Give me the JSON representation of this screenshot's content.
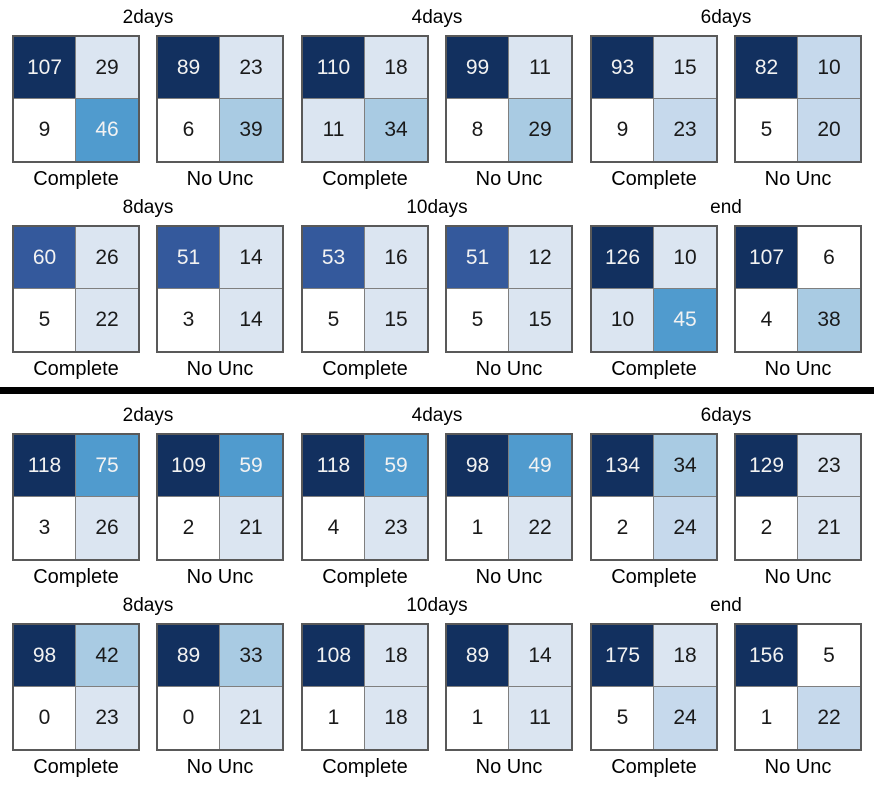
{
  "figure_title": "",
  "palette": {
    "navy": "#12305f",
    "royal": "#34599c",
    "mid": "#509bce",
    "midlight": "#a9cbe3",
    "lightmid": "#c6d9ec",
    "light": "#dbe5f1",
    "white": "#ffffff",
    "text_dark": "#1a1a1a",
    "text_light": "#f2f2f2",
    "divider": "#000000"
  },
  "chart_data": {
    "type": "heatmap",
    "description": "Grid of 2x2 confusion matrices. Two sections separated by a thick black line; each section has rows of time-point groups (2days..end), each group holding a 'Complete' and a 'No Unc' confusion matrix. Cell order: [top-left, top-right, bottom-left, bottom-right].",
    "matrix_label_complete": "Complete",
    "matrix_label_nounc": "No Unc",
    "sections": [
      {
        "rows": [
          {
            "groups": [
              {
                "title": "2days",
                "matrices": [
                  {
                    "label": "Complete",
                    "cells": [
                      {
                        "value": "107",
                        "shade": "navy"
                      },
                      {
                        "value": "29",
                        "shade": "light"
                      },
                      {
                        "value": "9",
                        "shade": "white"
                      },
                      {
                        "value": "46",
                        "shade": "mid"
                      }
                    ]
                  },
                  {
                    "label": "No Unc",
                    "cells": [
                      {
                        "value": "89",
                        "shade": "navy"
                      },
                      {
                        "value": "23",
                        "shade": "light"
                      },
                      {
                        "value": "6",
                        "shade": "white"
                      },
                      {
                        "value": "39",
                        "shade": "midlight"
                      }
                    ]
                  }
                ]
              },
              {
                "title": "4days",
                "matrices": [
                  {
                    "label": "Complete",
                    "cells": [
                      {
                        "value": "110",
                        "shade": "navy"
                      },
                      {
                        "value": "18",
                        "shade": "light"
                      },
                      {
                        "value": "11",
                        "shade": "light"
                      },
                      {
                        "value": "34",
                        "shade": "midlight"
                      }
                    ]
                  },
                  {
                    "label": "No Unc",
                    "cells": [
                      {
                        "value": "99",
                        "shade": "navy"
                      },
                      {
                        "value": "11",
                        "shade": "light"
                      },
                      {
                        "value": "8",
                        "shade": "white"
                      },
                      {
                        "value": "29",
                        "shade": "midlight"
                      }
                    ]
                  }
                ]
              },
              {
                "title": "6days",
                "matrices": [
                  {
                    "label": "Complete",
                    "cells": [
                      {
                        "value": "93",
                        "shade": "navy"
                      },
                      {
                        "value": "15",
                        "shade": "light"
                      },
                      {
                        "value": "9",
                        "shade": "white"
                      },
                      {
                        "value": "23",
                        "shade": "lightmid"
                      }
                    ]
                  },
                  {
                    "label": "No Unc",
                    "cells": [
                      {
                        "value": "82",
                        "shade": "navy"
                      },
                      {
                        "value": "10",
                        "shade": "lightmid"
                      },
                      {
                        "value": "5",
                        "shade": "white"
                      },
                      {
                        "value": "20",
                        "shade": "lightmid"
                      }
                    ]
                  }
                ]
              }
            ]
          },
          {
            "groups": [
              {
                "title": "8days",
                "matrices": [
                  {
                    "label": "Complete",
                    "cells": [
                      {
                        "value": "60",
                        "shade": "royal"
                      },
                      {
                        "value": "26",
                        "shade": "light"
                      },
                      {
                        "value": "5",
                        "shade": "white"
                      },
                      {
                        "value": "22",
                        "shade": "light"
                      }
                    ]
                  },
                  {
                    "label": "No Unc",
                    "cells": [
                      {
                        "value": "51",
                        "shade": "royal"
                      },
                      {
                        "value": "14",
                        "shade": "light"
                      },
                      {
                        "value": "3",
                        "shade": "white"
                      },
                      {
                        "value": "14",
                        "shade": "light"
                      }
                    ]
                  }
                ]
              },
              {
                "title": "10days",
                "matrices": [
                  {
                    "label": "Complete",
                    "cells": [
                      {
                        "value": "53",
                        "shade": "royal"
                      },
                      {
                        "value": "16",
                        "shade": "light"
                      },
                      {
                        "value": "5",
                        "shade": "white"
                      },
                      {
                        "value": "15",
                        "shade": "light"
                      }
                    ]
                  },
                  {
                    "label": "No Unc",
                    "cells": [
                      {
                        "value": "51",
                        "shade": "royal"
                      },
                      {
                        "value": "12",
                        "shade": "light"
                      },
                      {
                        "value": "5",
                        "shade": "white"
                      },
                      {
                        "value": "15",
                        "shade": "light"
                      }
                    ]
                  }
                ]
              },
              {
                "title": "end",
                "matrices": [
                  {
                    "label": "Complete",
                    "cells": [
                      {
                        "value": "126",
                        "shade": "navy"
                      },
                      {
                        "value": "10",
                        "shade": "light"
                      },
                      {
                        "value": "10",
                        "shade": "light"
                      },
                      {
                        "value": "45",
                        "shade": "mid"
                      }
                    ]
                  },
                  {
                    "label": "No Unc",
                    "cells": [
                      {
                        "value": "107",
                        "shade": "navy"
                      },
                      {
                        "value": "6",
                        "shade": "white"
                      },
                      {
                        "value": "4",
                        "shade": "white"
                      },
                      {
                        "value": "38",
                        "shade": "midlight"
                      }
                    ]
                  }
                ]
              }
            ]
          }
        ]
      },
      {
        "rows": [
          {
            "groups": [
              {
                "title": "2days",
                "matrices": [
                  {
                    "label": "Complete",
                    "cells": [
                      {
                        "value": "118",
                        "shade": "navy"
                      },
                      {
                        "value": "75",
                        "shade": "mid"
                      },
                      {
                        "value": "3",
                        "shade": "white"
                      },
                      {
                        "value": "26",
                        "shade": "light"
                      }
                    ]
                  },
                  {
                    "label": "No Unc",
                    "cells": [
                      {
                        "value": "109",
                        "shade": "navy"
                      },
                      {
                        "value": "59",
                        "shade": "mid"
                      },
                      {
                        "value": "2",
                        "shade": "white"
                      },
                      {
                        "value": "21",
                        "shade": "light"
                      }
                    ]
                  }
                ]
              },
              {
                "title": "4days",
                "matrices": [
                  {
                    "label": "Complete",
                    "cells": [
                      {
                        "value": "118",
                        "shade": "navy"
                      },
                      {
                        "value": "59",
                        "shade": "mid"
                      },
                      {
                        "value": "4",
                        "shade": "white"
                      },
                      {
                        "value": "23",
                        "shade": "light"
                      }
                    ]
                  },
                  {
                    "label": "No Unc",
                    "cells": [
                      {
                        "value": "98",
                        "shade": "navy"
                      },
                      {
                        "value": "49",
                        "shade": "mid"
                      },
                      {
                        "value": "1",
                        "shade": "white"
                      },
                      {
                        "value": "22",
                        "shade": "light"
                      }
                    ]
                  }
                ]
              },
              {
                "title": "6days",
                "matrices": [
                  {
                    "label": "Complete",
                    "cells": [
                      {
                        "value": "134",
                        "shade": "navy"
                      },
                      {
                        "value": "34",
                        "shade": "midlight"
                      },
                      {
                        "value": "2",
                        "shade": "white"
                      },
                      {
                        "value": "24",
                        "shade": "lightmid"
                      }
                    ]
                  },
                  {
                    "label": "No Unc",
                    "cells": [
                      {
                        "value": "129",
                        "shade": "navy"
                      },
                      {
                        "value": "23",
                        "shade": "light"
                      },
                      {
                        "value": "2",
                        "shade": "white"
                      },
                      {
                        "value": "21",
                        "shade": "light"
                      }
                    ]
                  }
                ]
              }
            ]
          },
          {
            "groups": [
              {
                "title": "8days",
                "matrices": [
                  {
                    "label": "Complete",
                    "cells": [
                      {
                        "value": "98",
                        "shade": "navy"
                      },
                      {
                        "value": "42",
                        "shade": "midlight"
                      },
                      {
                        "value": "0",
                        "shade": "white"
                      },
                      {
                        "value": "23",
                        "shade": "light"
                      }
                    ]
                  },
                  {
                    "label": "No Unc",
                    "cells": [
                      {
                        "value": "89",
                        "shade": "navy"
                      },
                      {
                        "value": "33",
                        "shade": "midlight"
                      },
                      {
                        "value": "0",
                        "shade": "white"
                      },
                      {
                        "value": "21",
                        "shade": "light"
                      }
                    ]
                  }
                ]
              },
              {
                "title": "10days",
                "matrices": [
                  {
                    "label": "Complete",
                    "cells": [
                      {
                        "value": "108",
                        "shade": "navy"
                      },
                      {
                        "value": "18",
                        "shade": "light"
                      },
                      {
                        "value": "1",
                        "shade": "white"
                      },
                      {
                        "value": "18",
                        "shade": "light"
                      }
                    ]
                  },
                  {
                    "label": "No Unc",
                    "cells": [
                      {
                        "value": "89",
                        "shade": "navy"
                      },
                      {
                        "value": "14",
                        "shade": "light"
                      },
                      {
                        "value": "1",
                        "shade": "white"
                      },
                      {
                        "value": "11",
                        "shade": "light"
                      }
                    ]
                  }
                ]
              },
              {
                "title": "end",
                "matrices": [
                  {
                    "label": "Complete",
                    "cells": [
                      {
                        "value": "175",
                        "shade": "navy"
                      },
                      {
                        "value": "18",
                        "shade": "light"
                      },
                      {
                        "value": "5",
                        "shade": "white"
                      },
                      {
                        "value": "24",
                        "shade": "lightmid"
                      }
                    ]
                  },
                  {
                    "label": "No Unc",
                    "cells": [
                      {
                        "value": "156",
                        "shade": "navy"
                      },
                      {
                        "value": "5",
                        "shade": "white"
                      },
                      {
                        "value": "1",
                        "shade": "white"
                      },
                      {
                        "value": "22",
                        "shade": "lightmid"
                      }
                    ]
                  }
                ]
              }
            ]
          }
        ]
      }
    ]
  }
}
